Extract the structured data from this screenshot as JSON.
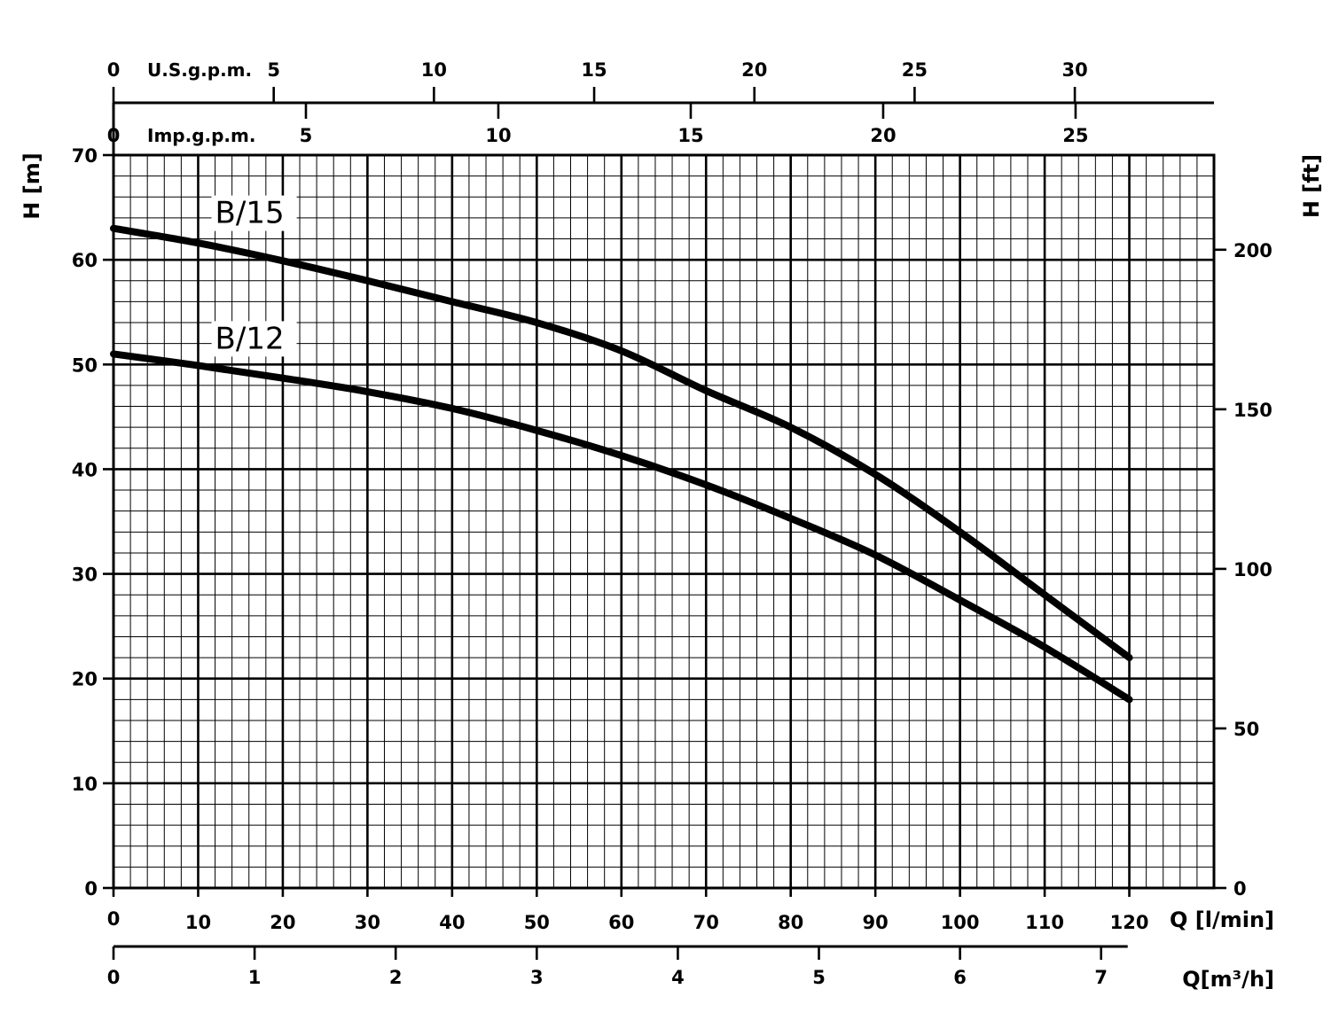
{
  "chart_data": {
    "type": "line",
    "title": "",
    "x": {
      "label": "Q [l/min]",
      "ticks": [
        0,
        10,
        20,
        30,
        40,
        50,
        60,
        70,
        80,
        90,
        100,
        110,
        120
      ],
      "lim": [
        0,
        130
      ]
    },
    "y": {
      "label": "H [m]",
      "ticks": [
        0,
        10,
        20,
        30,
        40,
        50,
        60,
        70
      ],
      "lim": [
        0,
        70
      ]
    },
    "y_right": {
      "label": "H [ft]",
      "ticks": [
        0,
        50,
        100,
        150,
        200
      ]
    },
    "x_bottom_secondary": {
      "label": "Q[m³/h]",
      "ticks": [
        0,
        1,
        2,
        3,
        4,
        5,
        6,
        7
      ]
    },
    "x_top_us": {
      "label": "U.S.g.p.m.",
      "ticks": [
        0,
        5,
        10,
        15,
        20,
        25,
        30
      ]
    },
    "x_top_imp": {
      "label": "Imp.g.p.m.",
      "ticks": [
        0,
        5,
        10,
        15,
        20,
        25
      ]
    },
    "grid": true,
    "series": [
      {
        "name": "B/15",
        "x": [
          0,
          10,
          20,
          30,
          40,
          50,
          60,
          70,
          80,
          90,
          100,
          110,
          120
        ],
        "y": [
          63,
          61.6,
          59.9,
          58,
          56,
          54,
          51.3,
          47.5,
          44,
          39.5,
          34,
          28,
          22
        ]
      },
      {
        "name": "B/12",
        "x": [
          0,
          10,
          20,
          30,
          40,
          50,
          60,
          70,
          80,
          90,
          100,
          110,
          120
        ],
        "y": [
          51,
          49.9,
          48.7,
          47.4,
          45.8,
          43.7,
          41.3,
          38.5,
          35.3,
          31.8,
          27.5,
          23,
          18
        ]
      }
    ]
  }
}
